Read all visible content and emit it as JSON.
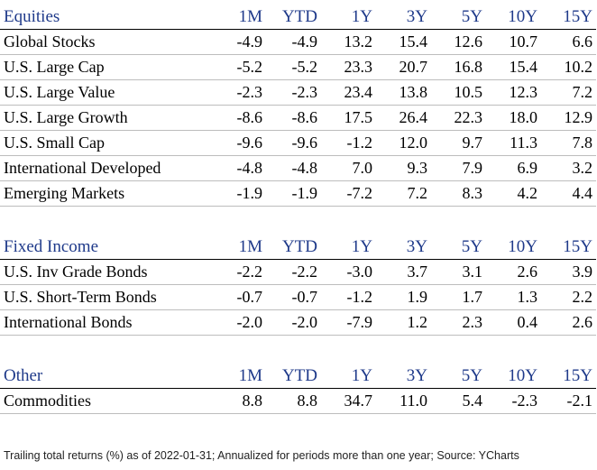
{
  "columns": [
    "1M",
    "YTD",
    "1Y",
    "3Y",
    "5Y",
    "10Y",
    "15Y"
  ],
  "sections": [
    {
      "title": "Equities",
      "rows": [
        {
          "name": "Global Stocks",
          "values": [
            "-4.9",
            "-4.9",
            "13.2",
            "15.4",
            "12.6",
            "10.7",
            "6.6"
          ]
        },
        {
          "name": "U.S. Large Cap",
          "values": [
            "-5.2",
            "-5.2",
            "23.3",
            "20.7",
            "16.8",
            "15.4",
            "10.2"
          ]
        },
        {
          "name": "U.S. Large Value",
          "values": [
            "-2.3",
            "-2.3",
            "23.4",
            "13.8",
            "10.5",
            "12.3",
            "7.2"
          ]
        },
        {
          "name": "U.S. Large Growth",
          "values": [
            "-8.6",
            "-8.6",
            "17.5",
            "26.4",
            "22.3",
            "18.0",
            "12.9"
          ]
        },
        {
          "name": "U.S. Small Cap",
          "values": [
            "-9.6",
            "-9.6",
            "-1.2",
            "12.0",
            "9.7",
            "11.3",
            "7.8"
          ]
        },
        {
          "name": "International Developed",
          "values": [
            "-4.8",
            "-4.8",
            "7.0",
            "9.3",
            "7.9",
            "6.9",
            "3.2"
          ]
        },
        {
          "name": "Emerging Markets",
          "values": [
            "-1.9",
            "-1.9",
            "-7.2",
            "7.2",
            "8.3",
            "4.2",
            "4.4"
          ]
        }
      ]
    },
    {
      "title": "Fixed Income",
      "rows": [
        {
          "name": "U.S. Inv Grade Bonds",
          "values": [
            "-2.2",
            "-2.2",
            "-3.0",
            "3.7",
            "3.1",
            "2.6",
            "3.9"
          ]
        },
        {
          "name": "U.S. Short-Term Bonds",
          "values": [
            "-0.7",
            "-0.7",
            "-1.2",
            "1.9",
            "1.7",
            "1.3",
            "2.2"
          ]
        },
        {
          "name": "International Bonds",
          "values": [
            "-2.0",
            "-2.0",
            "-7.9",
            "1.2",
            "2.3",
            "0.4",
            "2.6"
          ]
        }
      ]
    },
    {
      "title": "Other",
      "rows": [
        {
          "name": "Commodities",
          "values": [
            "8.8",
            "8.8",
            "34.7",
            "11.0",
            "5.4",
            "-2.3",
            "-2.1"
          ]
        }
      ]
    }
  ],
  "footnote": "Trailing total returns (%) as of 2022-01-31; Annualized for periods more than one year; Source: YCharts",
  "colors": {
    "header_text": "#1f3a8a",
    "body_text": "#000000",
    "row_rule": "#bdbdbd"
  }
}
